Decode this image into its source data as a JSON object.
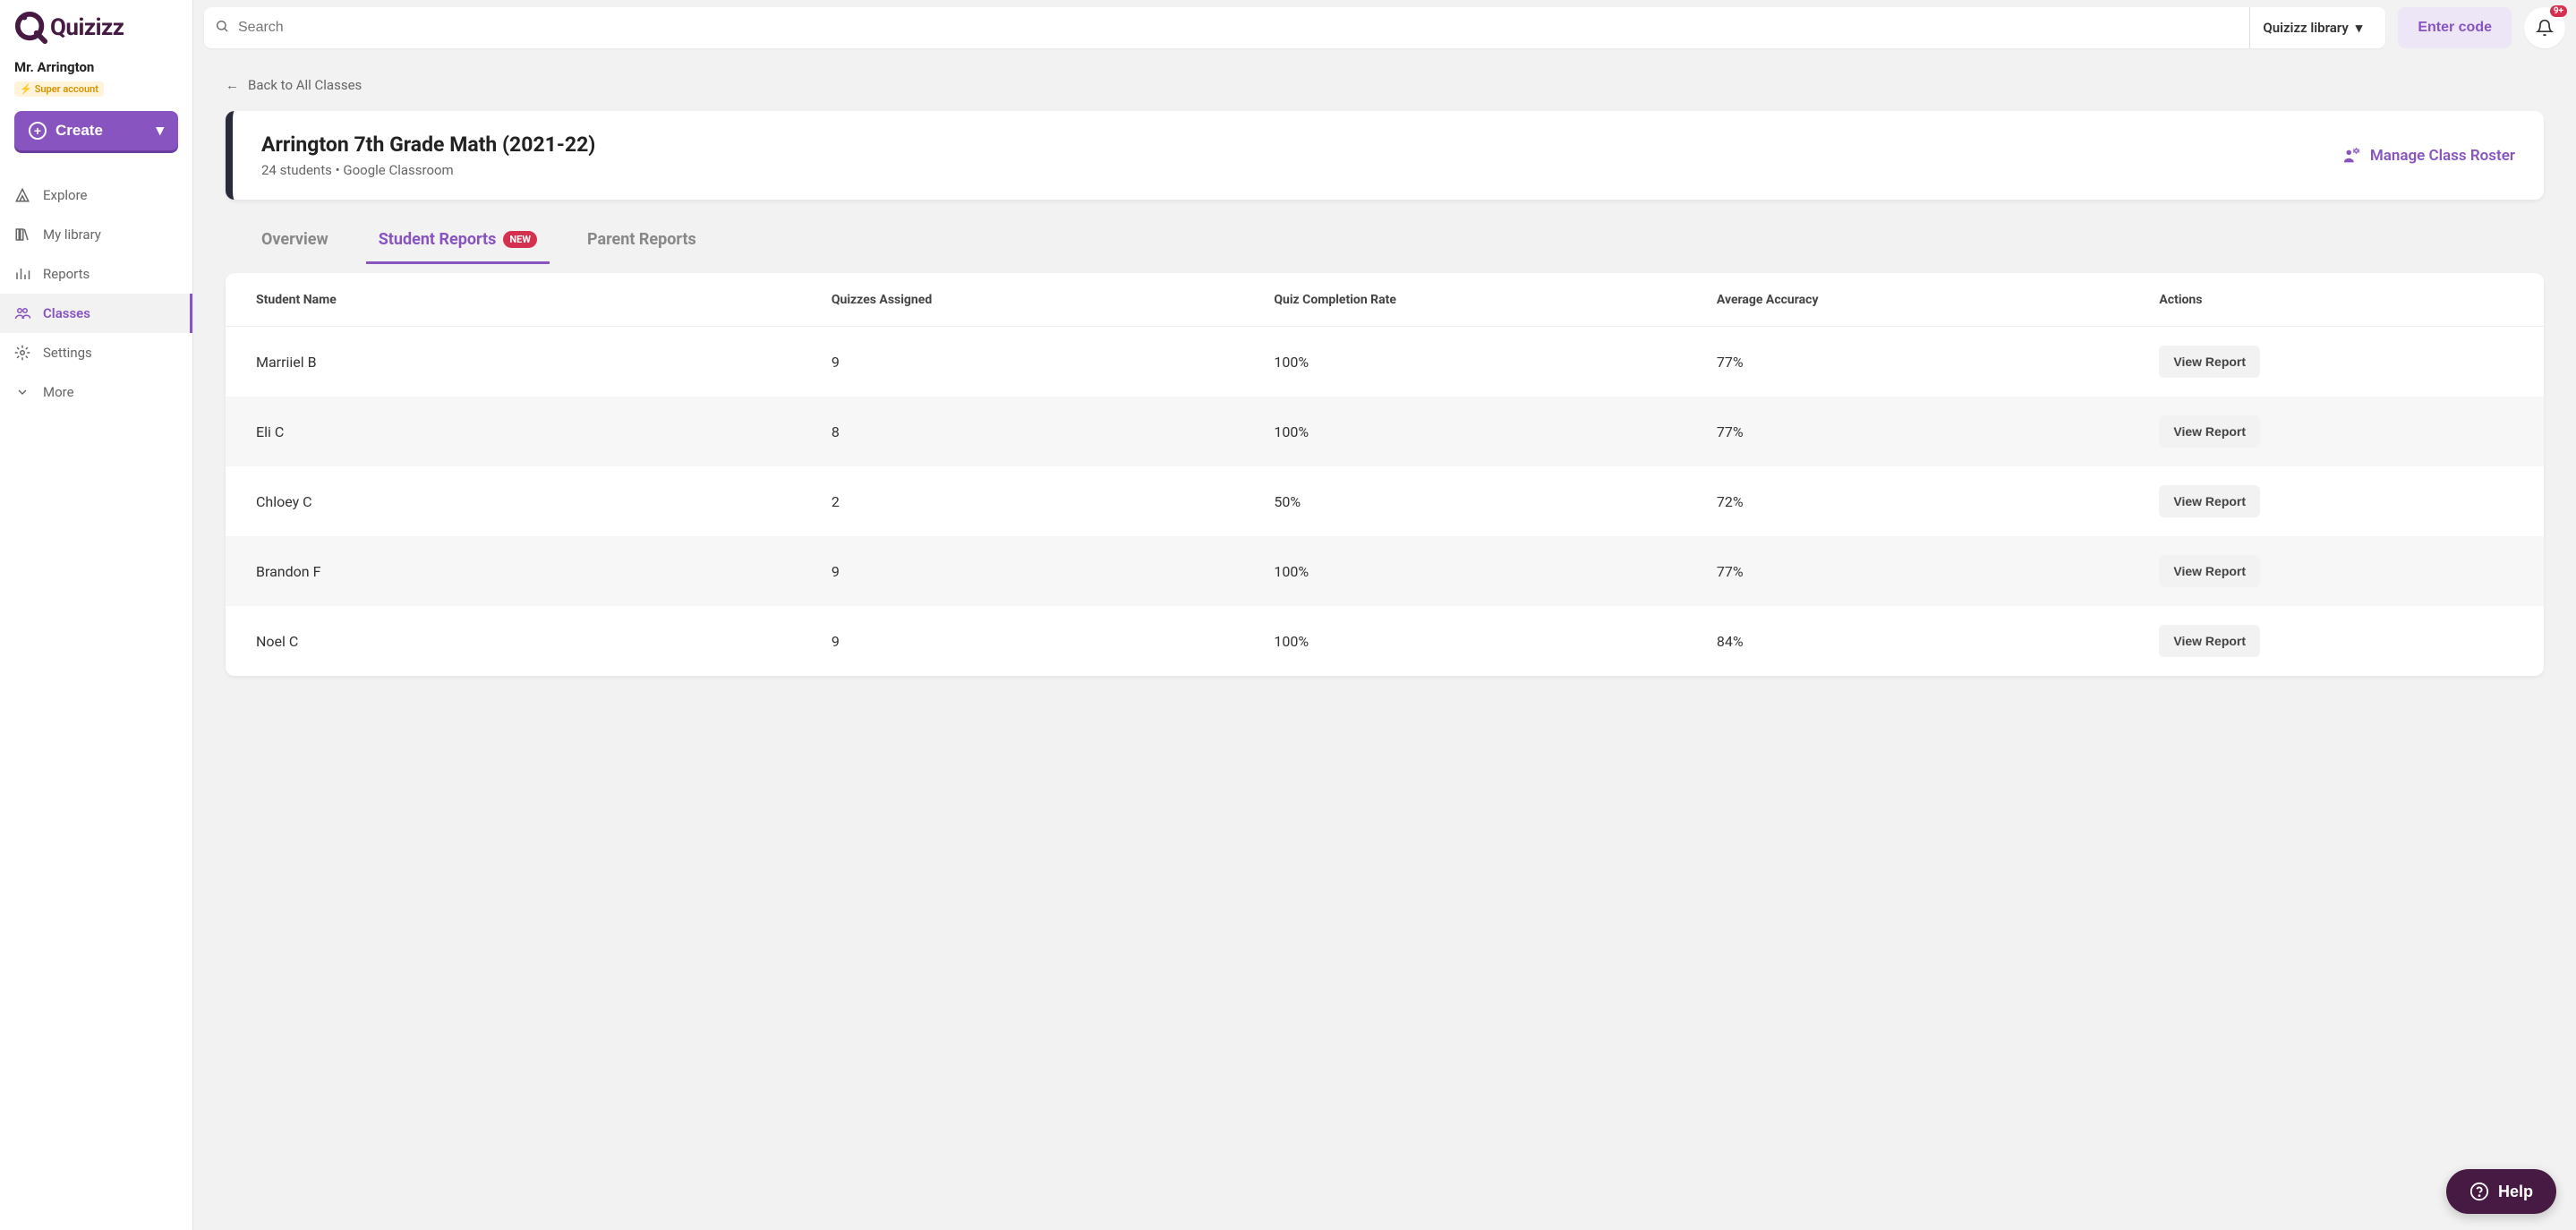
{
  "colors": {
    "primary": "#8854c0",
    "dark_purple": "#461a42",
    "badge_bg": "#fff3da",
    "badge_text": "#d49400",
    "red": "#d5304f",
    "card_border": "#292a3a",
    "bg": "#f2f2f2"
  },
  "sidebar": {
    "logo_text": "Quizizz",
    "user_name": "Mr. Arrington",
    "super_label": "Super account",
    "create_label": "Create",
    "nav": {
      "explore": "Explore",
      "mylibrary": "My library",
      "reports": "Reports",
      "classes": "Classes",
      "settings": "Settings",
      "more": "More"
    },
    "active": "classes"
  },
  "topbar": {
    "search_placeholder": "Search",
    "library_label": "Quizizz library",
    "enter_code": "Enter code",
    "notif_badge": "9+"
  },
  "content": {
    "back_label": "Back to All Classes",
    "class_title": "Arrington 7th Grade Math (2021-22)",
    "class_meta_students": "24 students",
    "class_meta_separator": "  •  ",
    "class_meta_source": "Google Classroom",
    "manage_roster": "Manage Class Roster",
    "tabs": {
      "overview": "Overview",
      "student_reports": "Student Reports",
      "student_reports_badge": "NEW",
      "parent_reports": "Parent Reports"
    },
    "active_tab": "student_reports",
    "table": {
      "columns": {
        "name": "Student Name",
        "quizzes": "Quizzes Assigned",
        "completion": "Quiz Completion Rate",
        "accuracy": "Average Accuracy",
        "actions": "Actions"
      },
      "action_label": "View Report",
      "rows": [
        {
          "name": "Marriiel B",
          "quizzes": "9",
          "completion": "100%",
          "accuracy": "77%"
        },
        {
          "name": "Eli C",
          "quizzes": "8",
          "completion": "100%",
          "accuracy": "77%"
        },
        {
          "name": "Chloey C",
          "quizzes": "2",
          "completion": "50%",
          "accuracy": "72%"
        },
        {
          "name": "Brandon F",
          "quizzes": "9",
          "completion": "100%",
          "accuracy": "77%"
        },
        {
          "name": "Noel C",
          "quizzes": "9",
          "completion": "100%",
          "accuracy": "84%"
        }
      ]
    }
  },
  "help_label": "Help"
}
